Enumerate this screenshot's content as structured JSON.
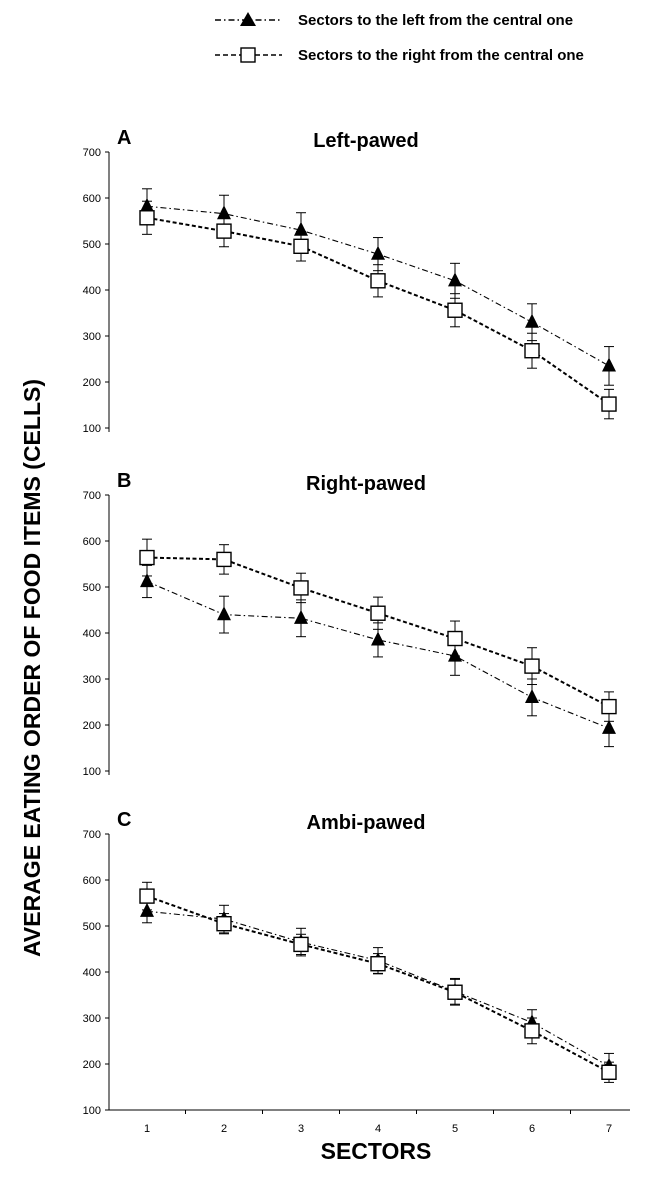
{
  "legend": {
    "entries": [
      {
        "label": "Sectors to the left from the central one"
      },
      {
        "label": "Sectors to the right from the central one"
      }
    ]
  },
  "y_axis_title": "AVERAGE EATING ORDER OF FOOD ITEMS (CELLS)",
  "x_axis_title": "SECTORS",
  "chart_data": [
    {
      "type": "line",
      "letter": "A",
      "title": "Left-pawed",
      "ylim": [
        100,
        700
      ],
      "yticks": [
        "100",
        "200",
        "300",
        "400",
        "500",
        "600",
        "700"
      ],
      "x": [
        1,
        2,
        3,
        4,
        5,
        6,
        7
      ],
      "xticks": [],
      "series": [
        {
          "marker": "triangle",
          "values": [
            582,
            566,
            530,
            478,
            420,
            330,
            235
          ],
          "errors": [
            38,
            40,
            38,
            36,
            38,
            40,
            42
          ]
        },
        {
          "marker": "square",
          "values": [
            557,
            528,
            495,
            420,
            356,
            268,
            152
          ],
          "errors": [
            36,
            34,
            32,
            35,
            36,
            38,
            32
          ]
        }
      ]
    },
    {
      "type": "line",
      "letter": "B",
      "title": "Right-pawed",
      "ylim": [
        100,
        700
      ],
      "yticks": [
        "100",
        "200",
        "300",
        "400",
        "500",
        "600",
        "700"
      ],
      "x": [
        1,
        2,
        3,
        4,
        5,
        6,
        7
      ],
      "xticks": [],
      "series": [
        {
          "marker": "triangle",
          "values": [
            512,
            440,
            432,
            385,
            350,
            260,
            193
          ],
          "errors": [
            35,
            40,
            40,
            37,
            42,
            40,
            40
          ]
        },
        {
          "marker": "square",
          "values": [
            564,
            560,
            498,
            443,
            388,
            328,
            240
          ],
          "errors": [
            40,
            32,
            32,
            35,
            38,
            40,
            32
          ]
        }
      ]
    },
    {
      "type": "line",
      "letter": "C",
      "title": "Ambi-pawed",
      "ylim": [
        100,
        700
      ],
      "yticks": [
        "100",
        "200",
        "300",
        "400",
        "500",
        "600",
        "700"
      ],
      "x": [
        1,
        2,
        3,
        4,
        5,
        6,
        7
      ],
      "xticks": [
        "1",
        "2",
        "3",
        "4",
        "5",
        "6",
        "7"
      ],
      "series": [
        {
          "marker": "triangle",
          "values": [
            532,
            515,
            465,
            425,
            358,
            290,
            195
          ],
          "errors": [
            25,
            30,
            30,
            28,
            28,
            28,
            28
          ]
        },
        {
          "marker": "square",
          "values": [
            565,
            505,
            460,
            418,
            356,
            272,
            182
          ],
          "errors": [
            30,
            22,
            22,
            22,
            28,
            28,
            22
          ]
        }
      ]
    }
  ]
}
